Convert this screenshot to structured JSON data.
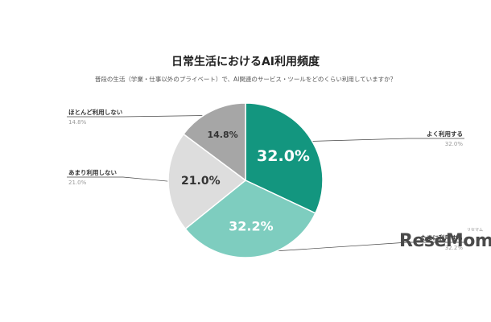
{
  "chart_data": {
    "type": "pie",
    "title": "日常生活におけるAI利用頻度",
    "subtitle": "普段の生活（学業・仕事以外のプライベート）で、AI関連のサービス・ツールをどのくらい利用していますか？",
    "categories": [
      "よく利用する",
      "たまに利用する",
      "あまり利用しない",
      "ほとんど利用しない"
    ],
    "values": [
      32.0,
      32.2,
      21.0,
      14.8
    ],
    "data_labels": [
      "32.0%",
      "32.2%",
      "21.0%",
      "14.8%"
    ],
    "legend_values": [
      "32.0%",
      "32.2%",
      "21.0%",
      "14.8%"
    ],
    "colors": [
      "#13967f",
      "#7ecdbf",
      "#dddddd",
      "#a6a6a6"
    ],
    "start_angle_deg": 0,
    "direction": "clockwise"
  },
  "watermark": {
    "text": "ReseMom",
    "ruby": "リセマム"
  }
}
